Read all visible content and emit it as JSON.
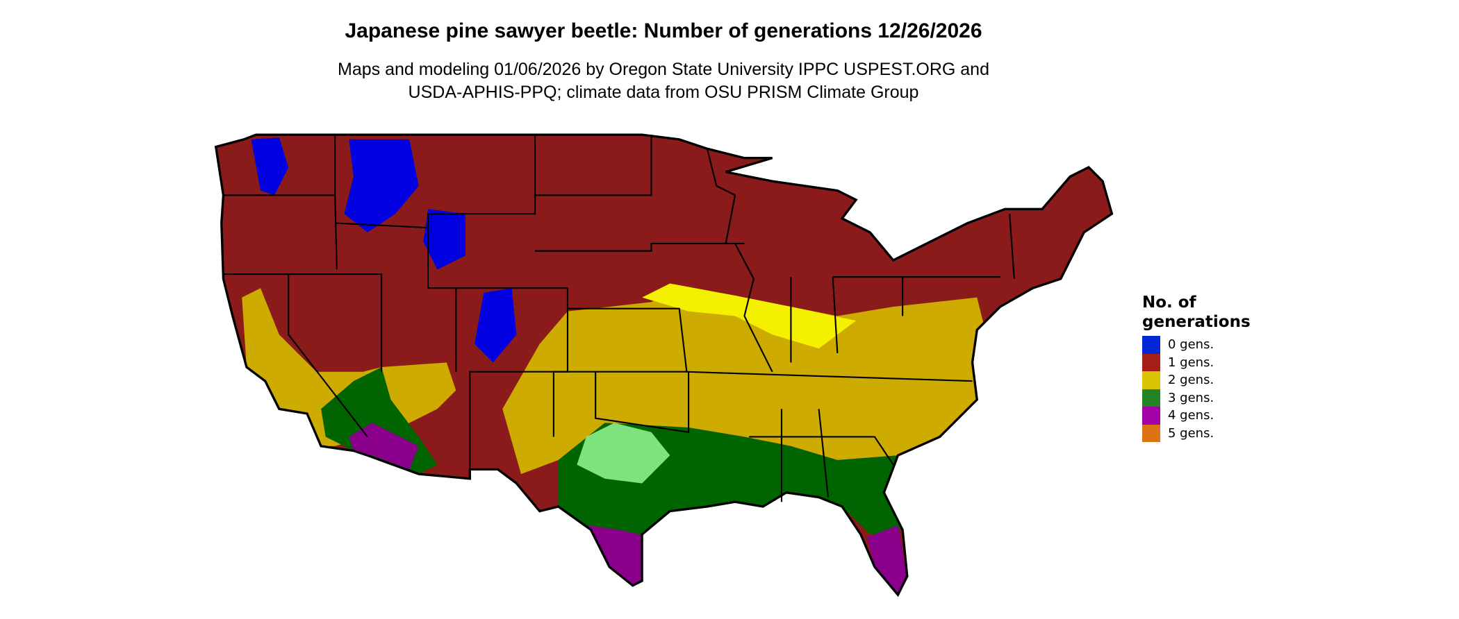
{
  "title": "Japanese pine sawyer beetle: Number of generations 12/26/2026",
  "subtitle_line1": "Maps and modeling 01/06/2026 by Oregon State University IPPC USPEST.ORG and",
  "subtitle_line2": "USDA-APHIS-PPQ; climate data from OSU PRISM Climate Group",
  "map": {
    "region": "Contiguous United States",
    "dominant_classes": {
      "north_and_west": "1 gens.",
      "central_band": "2 gens.",
      "southeast_gulf": "3 gens.",
      "south_florida_south_texas_sw_arizona": "4 gens.",
      "high_mountains": "0 gens."
    }
  },
  "legend": {
    "title_line1": "No. of",
    "title_line2": "generations",
    "items": [
      {
        "label": "0 gens.",
        "color": "#0026d6"
      },
      {
        "label": "1 gens.",
        "color": "#a51f17"
      },
      {
        "label": "2 gens.",
        "color": "#dac300"
      },
      {
        "label": "3 gens.",
        "color": "#238327"
      },
      {
        "label": "4 gens.",
        "color": "#a300a8"
      },
      {
        "label": "5 gens.",
        "color": "#dc7416"
      }
    ]
  }
}
